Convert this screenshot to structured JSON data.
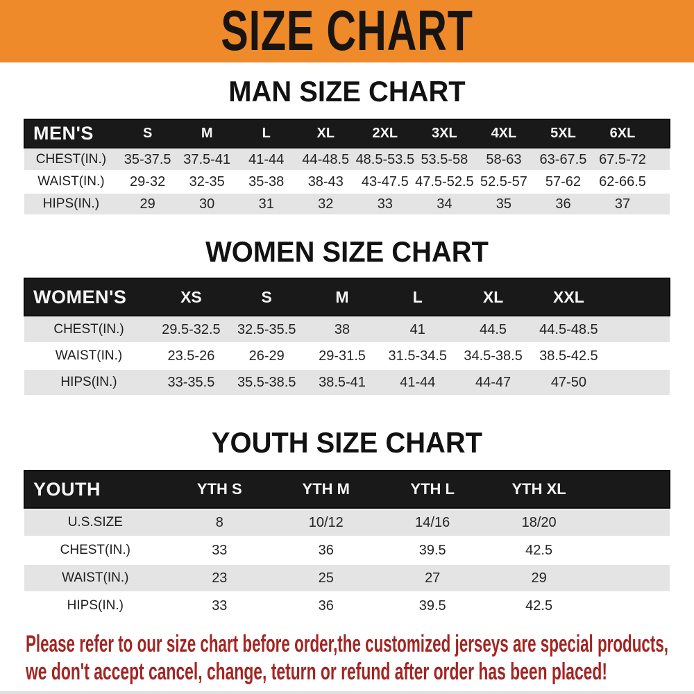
{
  "banner": {
    "title": "SIZE CHART"
  },
  "colors": {
    "banner_bg": "#ee8a2a",
    "header_bar_bg": "#191919",
    "row_stripe_bg": "#e4e4e4",
    "footer_text": "#a32522"
  },
  "sections": [
    {
      "heading": "MAN SIZE CHART",
      "header_label": "MEN'S",
      "columns": [
        "S",
        "M",
        "L",
        "XL",
        "2XL",
        "3XL",
        "4XL",
        "5XL",
        "6XL"
      ],
      "rows": [
        {
          "label": "CHEST(IN.)",
          "values": [
            "35-37.5",
            "37.5-41",
            "41-44",
            "44-48.5",
            "48.5-53.5",
            "53.5-58",
            "58-63",
            "63-67.5",
            "67.5-72"
          ]
        },
        {
          "label": "WAIST(IN.)",
          "values": [
            "29-32",
            "32-35",
            "35-38",
            "38-43",
            "43-47.5",
            "47.5-52.5",
            "52.5-57",
            "57-62",
            "62-66.5"
          ]
        },
        {
          "label": "HIPS(IN.)",
          "values": [
            "29",
            "30",
            "31",
            "32",
            "33",
            "34",
            "35",
            "36",
            "37"
          ]
        }
      ]
    },
    {
      "heading": "WOMEN SIZE CHART",
      "header_label": "WOMEN'S",
      "columns": [
        "XS",
        "S",
        "M",
        "L",
        "XL",
        "XXL"
      ],
      "rows": [
        {
          "label": "CHEST(IN.)",
          "values": [
            "29.5-32.5",
            "32.5-35.5",
            "38",
            "41",
            "44.5",
            "44.5-48.5"
          ]
        },
        {
          "label": "WAIST(IN.)",
          "values": [
            "23.5-26",
            "26-29",
            "29-31.5",
            "31.5-34.5",
            "34.5-38.5",
            "38.5-42.5"
          ]
        },
        {
          "label": "HIPS(IN.)",
          "values": [
            "33-35.5",
            "35.5-38.5",
            "38.5-41",
            "41-44",
            "44-47",
            "47-50"
          ]
        }
      ]
    },
    {
      "heading": "YOUTH SIZE CHART",
      "header_label": "YOUTH",
      "columns": [
        "YTH S",
        "YTH M",
        "YTH L",
        "YTH XL"
      ],
      "rows": [
        {
          "label": "U.S.SIZE",
          "values": [
            "8",
            "10/12",
            "14/16",
            "18/20"
          ]
        },
        {
          "label": "CHEST(IN.)",
          "values": [
            "33",
            "36",
            "39.5",
            "42.5"
          ]
        },
        {
          "label": "WAIST(IN.)",
          "values": [
            "23",
            "25",
            "27",
            "29"
          ]
        },
        {
          "label": "HIPS(IN.)",
          "values": [
            "33",
            "36",
            "39.5",
            "42.5"
          ]
        }
      ]
    }
  ],
  "footer": {
    "line1": "Please refer to our size chart before order,the customized jerseys are special products,",
    "line2": "we don't accept cancel, change, teturn or refund after order has been placed!"
  }
}
